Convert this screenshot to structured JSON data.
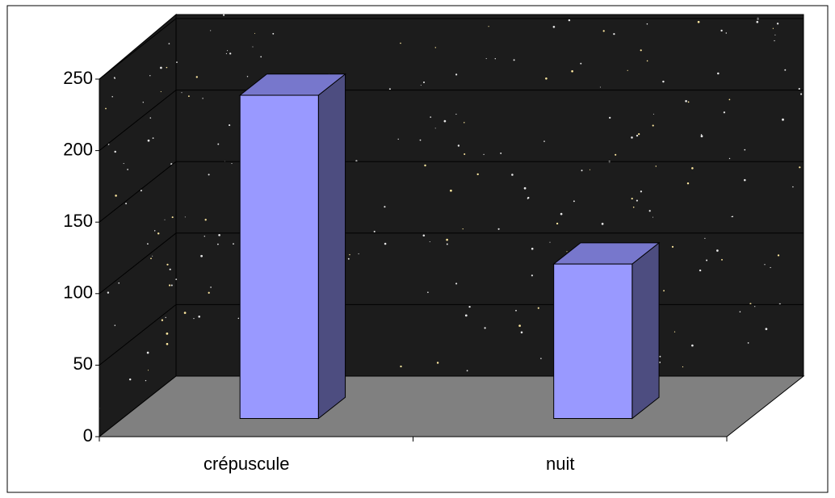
{
  "chart_data": {
    "type": "bar3d",
    "categories": [
      "crépuscule",
      "nuit"
    ],
    "values": [
      226,
      108
    ],
    "ylim": [
      0,
      250
    ],
    "yticks": [
      0,
      50,
      100,
      150,
      200,
      250
    ],
    "grid": true,
    "color": "#9999ff",
    "top_color": "#7777cc",
    "side_color": "#4d4d80",
    "wall_color": "#1c1c1c",
    "floor_color": "#808080"
  }
}
